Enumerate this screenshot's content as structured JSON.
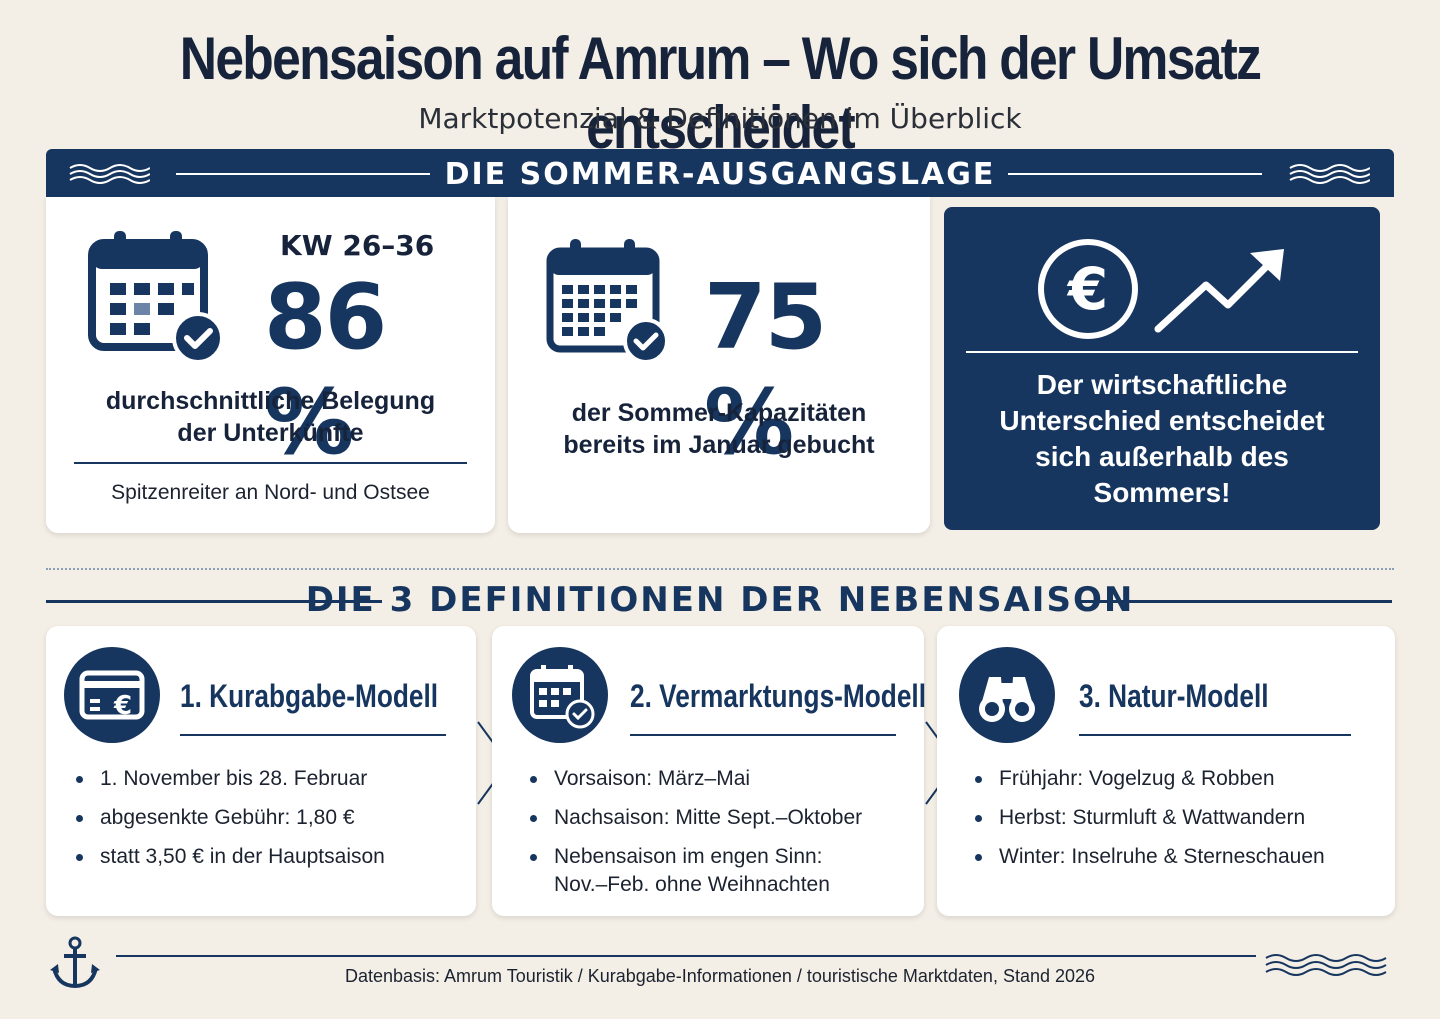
{
  "header": {
    "title": "Nebensaison auf Amrum – Wo sich der Umsatz entscheidet",
    "subtitle": "Marktpotenzial & Definitionen im Überblick"
  },
  "summer": {
    "banner": "DIE SOMMER-AUSGANGSLAGE",
    "card1": {
      "label": "KW 26–36",
      "value": "86 %",
      "description_line1": "durchschnittliche Belegung",
      "description_line2": "der Unterkünfte",
      "note": "Spitzenreiter an Nord- und Ostsee"
    },
    "card2": {
      "value": "75 %",
      "description_line1": "der Sommer-Kapazitäten",
      "description_line2": "bereits im Januar gebucht"
    },
    "card3": {
      "line1": "Der wirtschaftliche",
      "line2": "Unterschied entscheidet",
      "line3": "sich außerhalb des",
      "line4": "Sommers!"
    }
  },
  "definitions": {
    "heading": "DIE 3 DEFINITIONEN DER NEBENSAISON",
    "models": [
      {
        "title": "1. Kurabgabe-Modell",
        "icon": "card-euro-icon",
        "items": [
          "1. November bis 28. Februar",
          "abgesenkte Gebühr: 1,80 €",
          "statt 3,50 € in der Hauptsaison"
        ]
      },
      {
        "title": "2. Vermarktungs-Modell",
        "icon": "calendar-check-icon",
        "items": [
          "Vorsaison: März–Mai",
          "Nachsaison: Mitte Sept.–Oktober",
          "Nebensaison im engen Sinn:",
          "Nov.–Feb. ohne Weihnachten"
        ]
      },
      {
        "title": "3. Natur-Modell",
        "icon": "binoculars-icon",
        "items": [
          "Frühjahr: Vogelzug & Robben",
          "Herbst: Sturmluft & Wattwandern",
          "Winter: Inselruhe & Sterneschauen"
        ]
      }
    ]
  },
  "footer": {
    "source": "Datenbasis: Amrum Touristik / Kurabgabe-Informationen / touristische Marktdaten, Stand 2026"
  },
  "colors": {
    "navy": "#17365f",
    "background": "#f4efe6",
    "card": "#ffffff"
  }
}
